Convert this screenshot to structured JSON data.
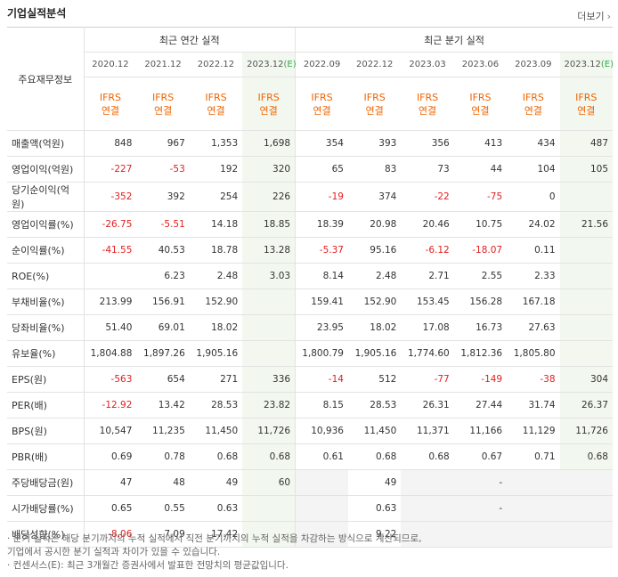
{
  "header": {
    "title": "기업실적분석",
    "more_label": "더보기"
  },
  "table": {
    "label_header": "주요재무정보",
    "annual_header": "최근 연간 실적",
    "quarter_header": "최근 분기 실적",
    "annual_periods": [
      "2020.12",
      "2021.12",
      "2022.12",
      "2023.12(E)"
    ],
    "quarter_periods": [
      "2022.09",
      "2022.12",
      "2023.03",
      "2023.06",
      "2023.09",
      "2023.12(E)"
    ],
    "basis_top": "IFRS",
    "basis_bottom": "연결",
    "rows": [
      {
        "label": "매출액(억원)",
        "annual": [
          "848",
          "967",
          "1,353",
          "1,698"
        ],
        "quarter": [
          "354",
          "393",
          "356",
          "413",
          "434",
          "487"
        ]
      },
      {
        "label": "영업이익(억원)",
        "annual": [
          "-227",
          "-53",
          "192",
          "320"
        ],
        "quarter": [
          "65",
          "83",
          "73",
          "44",
          "104",
          "105"
        ]
      },
      {
        "label": "당기순이익(억원)",
        "annual": [
          "-352",
          "392",
          "254",
          "226"
        ],
        "quarter": [
          "-19",
          "374",
          "-22",
          "-75",
          "0",
          ""
        ]
      },
      {
        "label": "영업이익률(%)",
        "annual": [
          "-26.75",
          "-5.51",
          "14.18",
          "18.85"
        ],
        "quarter": [
          "18.39",
          "20.98",
          "20.46",
          "10.75",
          "24.02",
          "21.56"
        ]
      },
      {
        "label": "순이익률(%)",
        "annual": [
          "-41.55",
          "40.53",
          "18.78",
          "13.28"
        ],
        "quarter": [
          "-5.37",
          "95.16",
          "-6.12",
          "-18.07",
          "0.11",
          ""
        ]
      },
      {
        "label": "ROE(%)",
        "annual": [
          "",
          "6.23",
          "2.48",
          "3.03"
        ],
        "quarter": [
          "8.14",
          "2.48",
          "2.71",
          "2.55",
          "2.33",
          ""
        ]
      },
      {
        "label": "부채비율(%)",
        "annual": [
          "213.99",
          "156.91",
          "152.90",
          ""
        ],
        "quarter": [
          "159.41",
          "152.90",
          "153.45",
          "156.28",
          "167.18",
          ""
        ]
      },
      {
        "label": "당좌비율(%)",
        "annual": [
          "51.40",
          "69.01",
          "18.02",
          ""
        ],
        "quarter": [
          "23.95",
          "18.02",
          "17.08",
          "16.73",
          "27.63",
          ""
        ]
      },
      {
        "label": "유보율(%)",
        "annual": [
          "1,804.88",
          "1,897.26",
          "1,905.16",
          ""
        ],
        "quarter": [
          "1,800.79",
          "1,905.16",
          "1,774.60",
          "1,812.36",
          "1,805.80",
          ""
        ]
      },
      {
        "label": "EPS(원)",
        "annual": [
          "-563",
          "654",
          "271",
          "336"
        ],
        "quarter": [
          "-14",
          "512",
          "-77",
          "-149",
          "-38",
          "304"
        ]
      },
      {
        "label": "PER(배)",
        "annual": [
          "-12.92",
          "13.42",
          "28.53",
          "23.82"
        ],
        "quarter": [
          "8.15",
          "28.53",
          "26.31",
          "27.44",
          "31.74",
          "26.37"
        ]
      },
      {
        "label": "BPS(원)",
        "annual": [
          "10,547",
          "11,235",
          "11,450",
          "11,726"
        ],
        "quarter": [
          "10,936",
          "11,450",
          "11,371",
          "11,166",
          "11,129",
          "11,726"
        ]
      },
      {
        "label": "PBR(배)",
        "annual": [
          "0.69",
          "0.78",
          "0.68",
          "0.68"
        ],
        "quarter": [
          "0.61",
          "0.68",
          "0.68",
          "0.67",
          "0.71",
          "0.68"
        ]
      },
      {
        "label": "주당배당금(원)",
        "annual": [
          "47",
          "48",
          "49",
          "60"
        ],
        "quarter": [
          "",
          "49",
          "",
          "-",
          "",
          ""
        ]
      },
      {
        "label": "시가배당률(%)",
        "annual": [
          "0.65",
          "0.55",
          "0.63",
          ""
        ],
        "quarter": [
          "",
          "0.63",
          "",
          "-",
          "",
          ""
        ]
      },
      {
        "label": "배당성향(%)",
        "annual": [
          "-8.06",
          "7.09",
          "17.42",
          ""
        ],
        "quarter": [
          "",
          "9.22",
          "",
          "",
          "",
          ""
        ]
      }
    ],
    "group_starts": [
      3,
      6,
      9,
      13
    ]
  },
  "notes": {
    "line1": "· 분기 실적은 해당 분기까지의 누적 실적에서 직전 분기까지의 누적 실적을 차감하는 방식으로 계산되므로,",
    "line2": "   기업에서 공시한 분기 실적과 차이가 있을 수 있습니다.",
    "line3": "· 컨센서스(E): 최근 3개월간 증권사에서 발표한 전망치의 평균값입니다."
  },
  "colors": {
    "negative": "#e02020",
    "basis": "#f06400",
    "estimate_bg": "#f2f8ef",
    "estimate_mark": "#36a84a"
  }
}
